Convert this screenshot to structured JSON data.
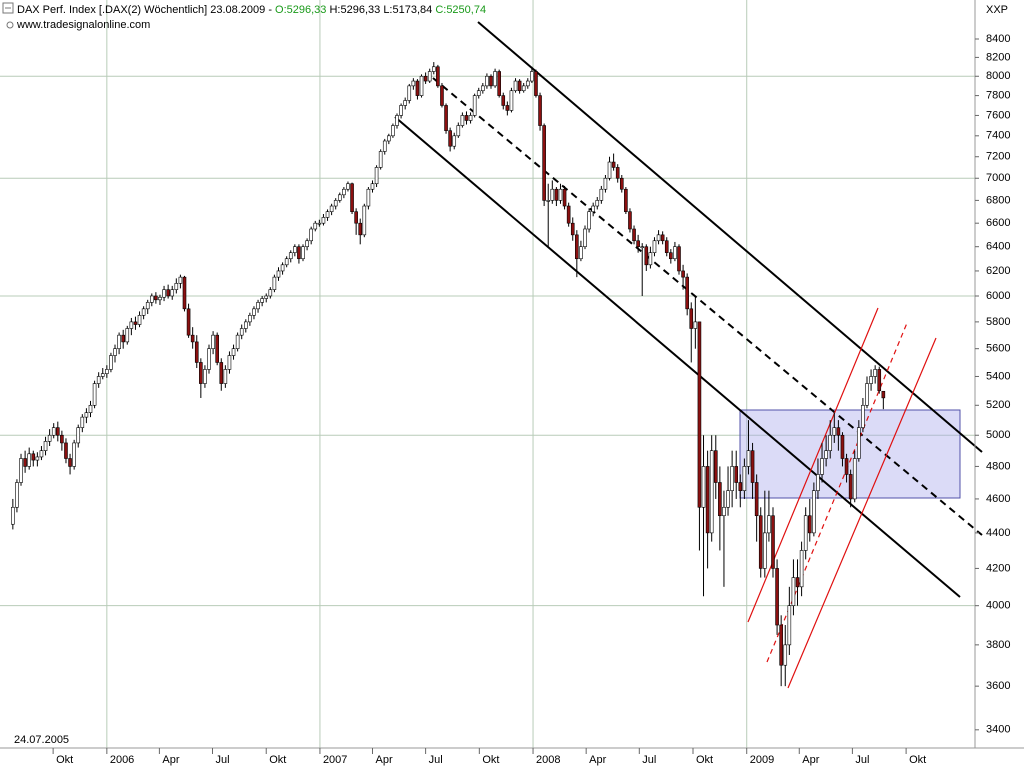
{
  "header": {
    "symbol": "DAX Perf. Index [.DAX(2)  Wöchentlich]",
    "date": "23.08.2009 -",
    "open": "O:5296,33",
    "high": "H:5296,33",
    "low": "L:5173,84",
    "close": "C:5250,74",
    "source": "www.tradesignalonline.com",
    "corner": "XXP"
  },
  "chart_data": {
    "type": "candlestick",
    "start_date": "24.07.2005",
    "up_color": "#ffffff",
    "down_color": "#8b1010",
    "log_scale": true,
    "grid": true,
    "ylim": [
      3320,
      8840
    ],
    "yticks": [
      3400,
      3600,
      3800,
      4000,
      4200,
      4400,
      4600,
      4800,
      5000,
      5200,
      5400,
      5600,
      5800,
      6000,
      6200,
      6400,
      6600,
      6800,
      7000,
      7200,
      7400,
      7600,
      7800,
      8000,
      8200,
      8400
    ],
    "xlim": [
      "2005-07-02",
      "2010-01-27"
    ],
    "xticks": [
      {
        "value": "2005-10-01",
        "label": "Okt"
      },
      {
        "value": "2006-01-01",
        "label": "2006"
      },
      {
        "value": "2006-04-01",
        "label": "Apr"
      },
      {
        "value": "2006-07-01",
        "label": "Jul"
      },
      {
        "value": "2006-10-01",
        "label": "Okt"
      },
      {
        "value": "2007-01-01",
        "label": "2007"
      },
      {
        "value": "2007-04-01",
        "label": "Apr"
      },
      {
        "value": "2007-07-01",
        "label": "Jul"
      },
      {
        "value": "2007-10-01",
        "label": "Okt"
      },
      {
        "value": "2008-01-01",
        "label": "2008"
      },
      {
        "value": "2008-04-01",
        "label": "Apr"
      },
      {
        "value": "2008-07-01",
        "label": "Jul"
      },
      {
        "value": "2008-10-01",
        "label": "Okt"
      },
      {
        "value": "2009-01-01",
        "label": "2009"
      },
      {
        "value": "2009-04-01",
        "label": "Apr"
      },
      {
        "value": "2009-07-01",
        "label": "Jul"
      },
      {
        "value": "2009-10-01",
        "label": "Okt"
      }
    ],
    "candles": [
      [
        4450,
        4600,
        4420,
        4550
      ],
      [
        4550,
        4720,
        4520,
        4700
      ],
      [
        4700,
        4880,
        4680,
        4850
      ],
      [
        4850,
        4900,
        4760,
        4800
      ],
      [
        4800,
        4920,
        4780,
        4880
      ],
      [
        4880,
        4900,
        4800,
        4840
      ],
      [
        4840,
        4890,
        4800,
        4860
      ],
      [
        4860,
        4930,
        4840,
        4900
      ],
      [
        4900,
        4990,
        4870,
        4960
      ],
      [
        4960,
        5040,
        4930,
        5000
      ],
      [
        5000,
        5080,
        4980,
        5050
      ],
      [
        5050,
        5090,
        4960,
        5000
      ],
      [
        5000,
        5030,
        4900,
        4950
      ],
      [
        4950,
        4980,
        4820,
        4850
      ],
      [
        4850,
        4880,
        4750,
        4800
      ],
      [
        4800,
        4970,
        4780,
        4950
      ],
      [
        4950,
        5070,
        4920,
        5050
      ],
      [
        5050,
        5140,
        5020,
        5120
      ],
      [
        5120,
        5180,
        5080,
        5150
      ],
      [
        5150,
        5230,
        5120,
        5200
      ],
      [
        5200,
        5370,
        5180,
        5350
      ],
      [
        5350,
        5430,
        5320,
        5400
      ],
      [
        5400,
        5460,
        5380,
        5420
      ],
      [
        5420,
        5480,
        5390,
        5450
      ],
      [
        5450,
        5570,
        5430,
        5550
      ],
      [
        5550,
        5630,
        5500,
        5600
      ],
      [
        5600,
        5720,
        5560,
        5700
      ],
      [
        5700,
        5740,
        5600,
        5650
      ],
      [
        5650,
        5770,
        5630,
        5750
      ],
      [
        5750,
        5830,
        5700,
        5800
      ],
      [
        5800,
        5840,
        5740,
        5780
      ],
      [
        5780,
        5880,
        5760,
        5850
      ],
      [
        5850,
        5920,
        5820,
        5900
      ],
      [
        5900,
        5970,
        5860,
        5950
      ],
      [
        5950,
        6020,
        5920,
        6000
      ],
      [
        6000,
        6030,
        5940,
        5970
      ],
      [
        5970,
        6010,
        5930,
        5990
      ],
      [
        5990,
        6080,
        5960,
        6050
      ],
      [
        6050,
        6090,
        5980,
        6000
      ],
      [
        6000,
        6080,
        5970,
        6050
      ],
      [
        6050,
        6140,
        6020,
        6100
      ],
      [
        6100,
        6170,
        6060,
        6150
      ],
      [
        6150,
        6160,
        5880,
        5900
      ],
      [
        5900,
        5940,
        5680,
        5700
      ],
      [
        5700,
        5760,
        5600,
        5650
      ],
      [
        5650,
        5700,
        5460,
        5500
      ],
      [
        5500,
        5530,
        5250,
        5350
      ],
      [
        5350,
        5480,
        5320,
        5450
      ],
      [
        5450,
        5630,
        5420,
        5600
      ],
      [
        5600,
        5730,
        5560,
        5700
      ],
      [
        5700,
        5720,
        5480,
        5500
      ],
      [
        5500,
        5530,
        5300,
        5350
      ],
      [
        5350,
        5480,
        5320,
        5450
      ],
      [
        5450,
        5580,
        5420,
        5550
      ],
      [
        5550,
        5630,
        5520,
        5600
      ],
      [
        5600,
        5720,
        5580,
        5700
      ],
      [
        5700,
        5780,
        5670,
        5750
      ],
      [
        5750,
        5820,
        5720,
        5800
      ],
      [
        5800,
        5870,
        5770,
        5850
      ],
      [
        5850,
        5920,
        5820,
        5900
      ],
      [
        5900,
        5970,
        5870,
        5950
      ],
      [
        5950,
        6000,
        5920,
        5980
      ],
      [
        5980,
        6020,
        5950,
        6000
      ],
      [
        6000,
        6070,
        5980,
        6050
      ],
      [
        6050,
        6170,
        6030,
        6150
      ],
      [
        6150,
        6230,
        6120,
        6200
      ],
      [
        6200,
        6270,
        6170,
        6250
      ],
      [
        6250,
        6320,
        6230,
        6300
      ],
      [
        6300,
        6370,
        6270,
        6350
      ],
      [
        6350,
        6420,
        6320,
        6400
      ],
      [
        6400,
        6420,
        6260,
        6300
      ],
      [
        6300,
        6420,
        6280,
        6400
      ],
      [
        6400,
        6470,
        6370,
        6450
      ],
      [
        6450,
        6570,
        6420,
        6550
      ],
      [
        6550,
        6620,
        6530,
        6600
      ],
      [
        6600,
        6630,
        6570,
        6600
      ],
      [
        6600,
        6680,
        6580,
        6650
      ],
      [
        6650,
        6720,
        6620,
        6700
      ],
      [
        6700,
        6770,
        6670,
        6750
      ],
      [
        6750,
        6820,
        6720,
        6800
      ],
      [
        6800,
        6870,
        6780,
        6850
      ],
      [
        6850,
        6920,
        6820,
        6900
      ],
      [
        6900,
        6970,
        6880,
        6950
      ],
      [
        6950,
        6960,
        6680,
        6700
      ],
      [
        6700,
        6730,
        6500,
        6600
      ],
      [
        6600,
        6640,
        6420,
        6500
      ],
      [
        6500,
        6770,
        6480,
        6750
      ],
      [
        6750,
        6920,
        6720,
        6900
      ],
      [
        6900,
        6980,
        6870,
        6950
      ],
      [
        6950,
        7120,
        6920,
        7100
      ],
      [
        7100,
        7270,
        7080,
        7250
      ],
      [
        7250,
        7370,
        7220,
        7350
      ],
      [
        7350,
        7420,
        7320,
        7400
      ],
      [
        7400,
        7520,
        7380,
        7500
      ],
      [
        7500,
        7620,
        7470,
        7600
      ],
      [
        7600,
        7720,
        7570,
        7700
      ],
      [
        7700,
        7780,
        7660,
        7750
      ],
      [
        7750,
        7920,
        7720,
        7900
      ],
      [
        7900,
        7980,
        7860,
        7950
      ],
      [
        7950,
        7970,
        7760,
        7800
      ],
      [
        7800,
        8020,
        7780,
        8000
      ],
      [
        8000,
        8040,
        7920,
        7950
      ],
      [
        7950,
        8080,
        7930,
        8050
      ],
      [
        8050,
        8150,
        8020,
        8100
      ],
      [
        8100,
        8120,
        7880,
        7900
      ],
      [
        7900,
        7930,
        7680,
        7700
      ],
      [
        7700,
        7720,
        7420,
        7450
      ],
      [
        7450,
        7480,
        7250,
        7300
      ],
      [
        7300,
        7430,
        7270,
        7400
      ],
      [
        7400,
        7530,
        7380,
        7500
      ],
      [
        7500,
        7630,
        7480,
        7600
      ],
      [
        7600,
        7640,
        7510,
        7550
      ],
      [
        7550,
        7630,
        7520,
        7600
      ],
      [
        7600,
        7820,
        7580,
        7800
      ],
      [
        7800,
        7880,
        7770,
        7850
      ],
      [
        7850,
        7930,
        7820,
        7900
      ],
      [
        7900,
        8030,
        7870,
        8000
      ],
      [
        8000,
        8020,
        7870,
        7900
      ],
      [
        7900,
        8080,
        7880,
        8050
      ],
      [
        8050,
        8070,
        7780,
        7800
      ],
      [
        7800,
        7830,
        7660,
        7700
      ],
      [
        7700,
        7740,
        7600,
        7650
      ],
      [
        7650,
        7880,
        7630,
        7850
      ],
      [
        7850,
        7980,
        7830,
        7950
      ],
      [
        7950,
        7970,
        7820,
        7850
      ],
      [
        7850,
        7930,
        7830,
        7900
      ],
      [
        7900,
        7980,
        7870,
        7950
      ],
      [
        7950,
        8100,
        7930,
        8050
      ],
      [
        8050,
        8070,
        7780,
        7800
      ],
      [
        7800,
        7830,
        7450,
        7500
      ],
      [
        7500,
        7520,
        6750,
        6800
      ],
      [
        6800,
        6950,
        6400,
        6800
      ],
      [
        6800,
        6980,
        6770,
        6900
      ],
      [
        6900,
        6920,
        6750,
        6800
      ],
      [
        6800,
        6950,
        6770,
        6900
      ],
      [
        6900,
        6930,
        6720,
        6750
      ],
      [
        6750,
        6780,
        6570,
        6600
      ],
      [
        6600,
        6650,
        6450,
        6500
      ],
      [
        6500,
        6540,
        6150,
        6300
      ],
      [
        6300,
        6450,
        6280,
        6400
      ],
      [
        6400,
        6580,
        6380,
        6550
      ],
      [
        6550,
        6730,
        6520,
        6700
      ],
      [
        6700,
        6780,
        6660,
        6750
      ],
      [
        6750,
        6830,
        6720,
        6800
      ],
      [
        6800,
        6930,
        6770,
        6900
      ],
      [
        6900,
        7030,
        6870,
        7000
      ],
      [
        7000,
        7200,
        6980,
        7150
      ],
      [
        7150,
        7230,
        7070,
        7100
      ],
      [
        7100,
        7130,
        6960,
        7000
      ],
      [
        7000,
        7030,
        6870,
        6900
      ],
      [
        6900,
        6920,
        6680,
        6700
      ],
      [
        6700,
        6730,
        6520,
        6550
      ],
      [
        6550,
        6580,
        6420,
        6450
      ],
      [
        6450,
        6500,
        6350,
        6400
      ],
      [
        6400,
        6430,
        6000,
        6400
      ],
      [
        6400,
        6420,
        6200,
        6250
      ],
      [
        6250,
        6400,
        6220,
        6350
      ],
      [
        6350,
        6480,
        6320,
        6450
      ],
      [
        6450,
        6540,
        6420,
        6500
      ],
      [
        6500,
        6530,
        6420,
        6450
      ],
      [
        6450,
        6480,
        6320,
        6350
      ],
      [
        6350,
        6380,
        6260,
        6300
      ],
      [
        6300,
        6440,
        6280,
        6400
      ],
      [
        6400,
        6420,
        6170,
        6200
      ],
      [
        6200,
        6250,
        6050,
        6150
      ],
      [
        6150,
        6180,
        5850,
        5900
      ],
      [
        5900,
        5950,
        5500,
        5750
      ],
      [
        5750,
        6000,
        5600,
        5800
      ],
      [
        5800,
        5800,
        4300,
        4550
      ],
      [
        4550,
        5000,
        4050,
        4800
      ],
      [
        4800,
        4900,
        4200,
        4400
      ],
      [
        4400,
        5000,
        4350,
        4900
      ],
      [
        4900,
        5000,
        4600,
        4700
      ],
      [
        4700,
        4800,
        4300,
        4500
      ],
      [
        4500,
        4650,
        4100,
        4550
      ],
      [
        4550,
        4800,
        4500,
        4650
      ],
      [
        4650,
        4900,
        4550,
        4800
      ],
      [
        4800,
        4900,
        4600,
        4700
      ],
      [
        4700,
        4750,
        4550,
        4650
      ],
      [
        4650,
        4850,
        4600,
        4800
      ],
      [
        4800,
        5100,
        4750,
        4900
      ],
      [
        4900,
        4950,
        4600,
        4700
      ],
      [
        4700,
        4750,
        4350,
        4500
      ],
      [
        4500,
        4550,
        4150,
        4200
      ],
      [
        4200,
        4650,
        4150,
        4400
      ],
      [
        4400,
        4650,
        4350,
        4500
      ],
      [
        4500,
        4550,
        4150,
        4200
      ],
      [
        4200,
        4250,
        3850,
        3900
      ],
      [
        3900,
        3950,
        3600,
        3700
      ],
      [
        3700,
        3900,
        3600,
        3800
      ],
      [
        3800,
        4100,
        3750,
        4000
      ],
      [
        4000,
        4250,
        3950,
        4150
      ],
      [
        4150,
        4250,
        4000,
        4100
      ],
      [
        4100,
        4350,
        4050,
        4300
      ],
      [
        4300,
        4550,
        4250,
        4500
      ],
      [
        4500,
        4600,
        4350,
        4400
      ],
      [
        4400,
        4700,
        4380,
        4650
      ],
      [
        4650,
        4850,
        4600,
        4750
      ],
      [
        4750,
        4950,
        4700,
        4850
      ],
      [
        4850,
        5000,
        4800,
        4900
      ],
      [
        4900,
        5100,
        4850,
        5000
      ],
      [
        5000,
        5150,
        4950,
        5050
      ],
      [
        5050,
        5100,
        4900,
        5000
      ],
      [
        5000,
        5020,
        4800,
        4850
      ],
      [
        4850,
        4880,
        4700,
        4750
      ],
      [
        4750,
        4780,
        4550,
        4600
      ],
      [
        4600,
        4900,
        4580,
        4850
      ],
      [
        4850,
        5100,
        4830,
        5050
      ],
      [
        5050,
        5250,
        5020,
        5200
      ],
      [
        5200,
        5400,
        5180,
        5350
      ],
      [
        5350,
        5450,
        5300,
        5400
      ],
      [
        5400,
        5480,
        5350,
        5450
      ],
      [
        5450,
        5470,
        5280,
        5300
      ],
      [
        5296.33,
        5296.33,
        5173.84,
        5250.74
      ]
    ]
  }
}
